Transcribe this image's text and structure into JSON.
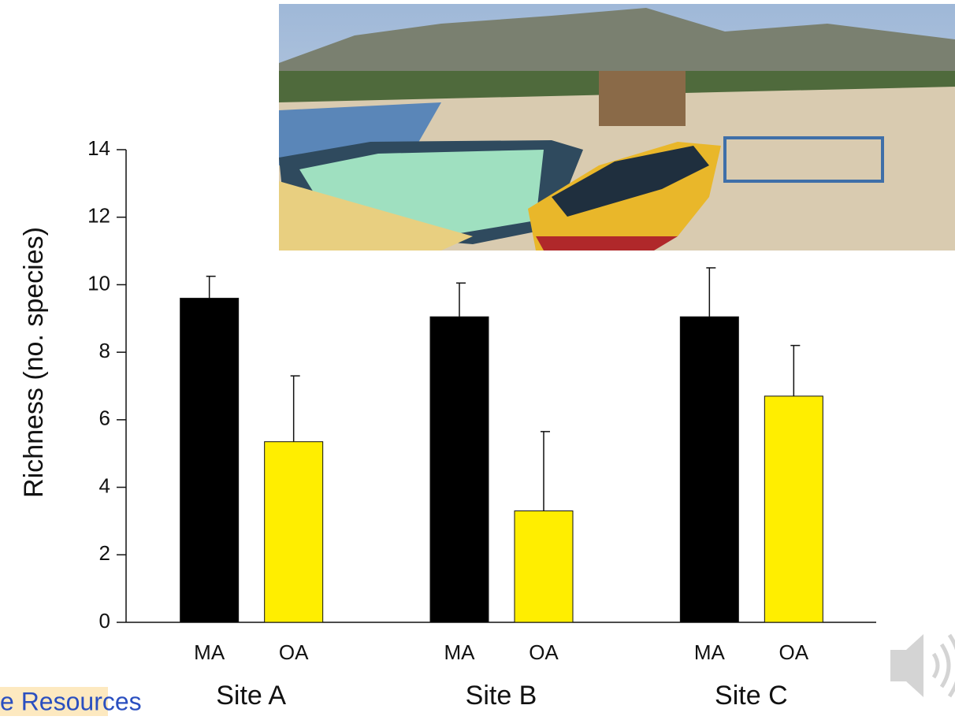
{
  "chart_data": {
    "type": "bar",
    "y_label": "Richness (no. species)",
    "categories": [
      "Site A",
      "Site B",
      "Site C"
    ],
    "series": [
      {
        "name": "MA",
        "color": "#000000",
        "values": [
          9.6,
          9.05,
          9.05
        ],
        "errors": [
          0.65,
          1.0,
          1.45
        ]
      },
      {
        "name": "OA",
        "color": "#ffee00",
        "values": [
          5.35,
          3.3,
          6.7
        ],
        "errors": [
          1.95,
          2.35,
          1.5
        ]
      }
    ],
    "ylim": [
      0,
      14
    ],
    "yticks": [
      0,
      2,
      4,
      6,
      8,
      10,
      12,
      14
    ],
    "grid": false
  },
  "footer": {
    "text": "e Resources"
  }
}
